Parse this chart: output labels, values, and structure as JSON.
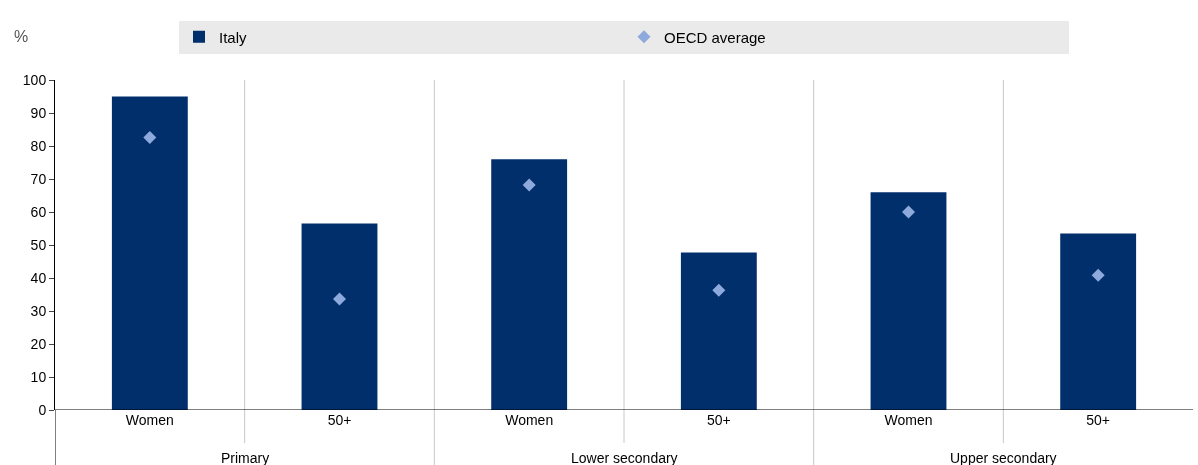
{
  "chart_data": {
    "type": "bar",
    "ylabel": "%",
    "categories": [
      "Women",
      "50+",
      "Women",
      "50+",
      "Women",
      "50+"
    ],
    "series": [
      {
        "name": "Italy",
        "color": "#002f6c",
        "values": [
          95,
          56.5,
          76,
          47.7,
          66,
          53.5
        ]
      },
      {
        "name": "OECD average",
        "type": "scatter",
        "marker": "diamond",
        "color": "#8ea9db",
        "values": [
          82.6,
          33.6,
          68.2,
          36.3,
          60,
          40.8
        ]
      }
    ],
    "annotations": [
      "Primary",
      "Lower secondary",
      "Upper secondary"
    ],
    "ylim": [
      0,
      100
    ],
    "yticks": [
      0,
      10,
      20,
      30,
      40,
      50,
      60,
      70,
      80,
      90,
      100
    ],
    "grid": "x",
    "legend": "top"
  }
}
